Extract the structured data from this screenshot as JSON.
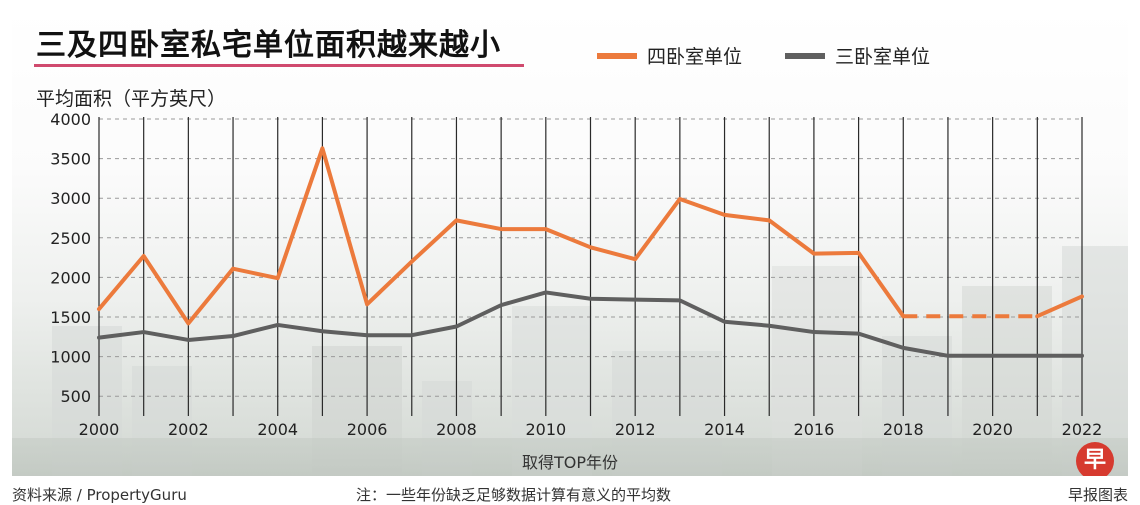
{
  "header": {
    "title": "三及四卧室私宅单位面积越来越小"
  },
  "footer": {
    "source": "资料来源 / PropertyGuru",
    "note": "注：一些年份缺乏足够数据计算有意义的平均数",
    "credit": "早报图表",
    "logo_char": "早"
  },
  "colors": {
    "four_bedroom": "#ec7a3c",
    "three_bedroom": "#5f5f5f",
    "title_rule": "#d04a6e",
    "logo": "#d63a2f"
  },
  "chart_data": {
    "type": "line",
    "title": "三及四卧室私宅单位面积越来越小",
    "ylabel": "平均面积（平方英尺）",
    "xlabel": "取得TOP年份",
    "ylim": [
      250,
      4000
    ],
    "yticks": [
      500,
      1000,
      1500,
      2000,
      2500,
      3000,
      3500,
      4000
    ],
    "x": [
      2000,
      2001,
      2002,
      2003,
      2004,
      2005,
      2006,
      2007,
      2008,
      2009,
      2010,
      2011,
      2012,
      2013,
      2014,
      2015,
      2016,
      2017,
      2018,
      2019,
      2020,
      2021,
      2022
    ],
    "xticks": [
      2000,
      2002,
      2004,
      2006,
      2008,
      2010,
      2012,
      2014,
      2016,
      2018,
      2020,
      2022
    ],
    "grid": true,
    "legend_position": "top",
    "series": [
      {
        "name": "四卧室单位",
        "color": "#ec7a3c",
        "values": [
          1600,
          2270,
          1420,
          2110,
          1990,
          3630,
          1660,
          2200,
          2720,
          2610,
          2610,
          2380,
          2230,
          2990,
          2790,
          2720,
          2300,
          2310,
          1510,
          null,
          null,
          1510,
          1760
        ],
        "dashed_gaps": [
          [
            2018,
            2021
          ]
        ]
      },
      {
        "name": "三卧室单位",
        "color": "#5f5f5f",
        "values": [
          1240,
          1310,
          1210,
          1260,
          1400,
          1320,
          1270,
          1270,
          1380,
          1650,
          1810,
          1730,
          1720,
          1710,
          1440,
          1390,
          1310,
          1290,
          1110,
          1010,
          1010,
          1010,
          1010
        ]
      }
    ]
  }
}
